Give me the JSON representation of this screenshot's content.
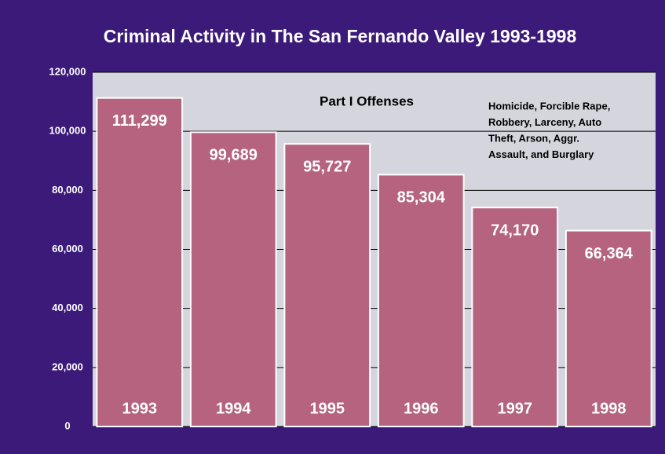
{
  "chart_data": {
    "type": "bar",
    "title": "Criminal Activity in The San Fernando Valley 1993-1998",
    "subtitle": "Part I Offenses",
    "note": [
      "Homicide, Forcible Rape,",
      "Robbery, Larceny, Auto",
      "Theft, Arson, Aggr.",
      "Assault, and Burglary"
    ],
    "categories": [
      "1993",
      "1994",
      "1995",
      "1996",
      "1997",
      "1998"
    ],
    "values": [
      111299,
      99689,
      95727,
      85304,
      74170,
      66364
    ],
    "value_labels": [
      "111,299",
      "99,689",
      "95,727",
      "85,304",
      "74,170",
      "66,364"
    ],
    "color": "#b5637f",
    "ylim": [
      0,
      120000
    ],
    "yticks": [
      0,
      {
        "value": 20000,
        "label": "20,000"
      },
      {
        "value": 40000,
        "label": "40,000"
      },
      {
        "value": 60000,
        "label": "60,000"
      },
      {
        "value": 80000,
        "label": "80,000"
      },
      {
        "value": 100000,
        "label": "100,000"
      },
      {
        "value": 120000,
        "label": "120,000"
      }
    ],
    "grid": true
  }
}
